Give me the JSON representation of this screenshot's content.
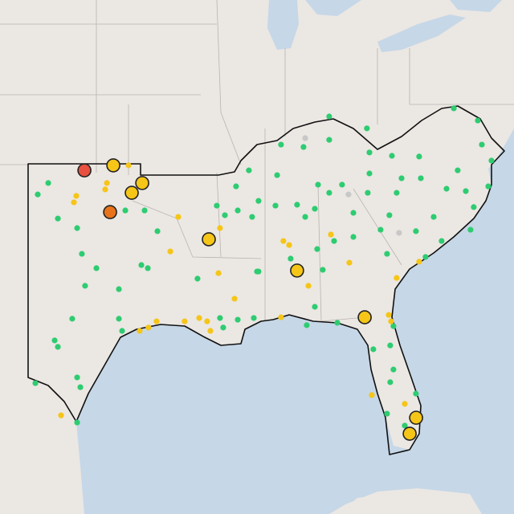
{
  "map": {
    "projection": {
      "lon0": -103,
      "lat0": 37
    },
    "groups": [
      {
        "color": "#2ecc71",
        "stroke": "none",
        "large": false,
        "points": [
          [
            -101.81,
            36.23
          ],
          [
            -102.43,
            35.75
          ],
          [
            -101.24,
            34.74
          ],
          [
            -100.1,
            34.34
          ],
          [
            -99.82,
            33.26
          ],
          [
            -98.96,
            32.66
          ],
          [
            -99.63,
            31.92
          ],
          [
            -101.43,
            29.63
          ],
          [
            -101.24,
            29.36
          ],
          [
            -100.39,
            30.54
          ],
          [
            -97.63,
            30.54
          ],
          [
            -97.44,
            30.03
          ],
          [
            -96.3,
            32.79
          ],
          [
            -95.92,
            32.66
          ],
          [
            -97.63,
            31.78
          ],
          [
            -99.91,
            27.67
          ],
          [
            -100.1,
            28.08
          ],
          [
            -102.57,
            27.84
          ],
          [
            -100.1,
            26.19
          ],
          [
            -97.25,
            35.08
          ],
          [
            -96.11,
            35.08
          ],
          [
            -95.35,
            34.21
          ],
          [
            -91.36,
            34.88
          ],
          [
            -90.7,
            36.09
          ],
          [
            -90.6,
            35.08
          ],
          [
            -91.84,
            35.28
          ],
          [
            -89.94,
            36.76
          ],
          [
            -89.37,
            35.48
          ],
          [
            -92.98,
            32.22
          ],
          [
            -91.65,
            30.57
          ],
          [
            -91.46,
            30.17
          ],
          [
            -90.6,
            30.5
          ],
          [
            -89.65,
            30.57
          ],
          [
            -89.37,
            32.52
          ],
          [
            -88.04,
            37.84
          ],
          [
            -86.71,
            37.74
          ],
          [
            -85.19,
            39.02
          ],
          [
            -85.19,
            38.04
          ],
          [
            -82.96,
            38.52
          ],
          [
            -82.81,
            37.51
          ],
          [
            -81.48,
            37.37
          ],
          [
            -79.87,
            37.34
          ],
          [
            -79.77,
            36.43
          ],
          [
            -77.82,
            39.36
          ],
          [
            -76.4,
            38.85
          ],
          [
            -76.16,
            37.84
          ],
          [
            -75.59,
            37.17
          ],
          [
            -77.59,
            36.76
          ],
          [
            -78.25,
            35.99
          ],
          [
            -77.11,
            35.89
          ],
          [
            -75.78,
            36.09
          ],
          [
            -76.64,
            35.22
          ],
          [
            -76.83,
            34.27
          ],
          [
            -79.01,
            34.81
          ],
          [
            -80.06,
            34.21
          ],
          [
            -81.2,
            35.82
          ],
          [
            -82.91,
            35.82
          ],
          [
            -85.19,
            35.82
          ],
          [
            -84.43,
            36.16
          ],
          [
            -85.85,
            36.16
          ],
          [
            -87.09,
            35.32
          ],
          [
            -88.27,
            36.56
          ],
          [
            -88.37,
            35.28
          ],
          [
            -89.75,
            34.81
          ],
          [
            -86.61,
            34.81
          ],
          [
            -86.04,
            35.15
          ],
          [
            -83.76,
            34.98
          ],
          [
            -81.63,
            34.88
          ],
          [
            -84.9,
            33.8
          ],
          [
            -83.76,
            33.97
          ],
          [
            -85.9,
            33.46
          ],
          [
            -85.57,
            32.59
          ],
          [
            -87.47,
            33.06
          ],
          [
            -89.46,
            32.52
          ],
          [
            -86.04,
            31.04
          ],
          [
            -86.52,
            30.27
          ],
          [
            -84.71,
            30.37
          ],
          [
            -82.15,
            34.27
          ],
          [
            -81.77,
            33.26
          ],
          [
            -80.91,
            36.43
          ],
          [
            -82.81,
            36.63
          ],
          [
            -81.39,
            30.23
          ],
          [
            -82.58,
            29.26
          ],
          [
            -81.58,
            29.42
          ],
          [
            -81.39,
            28.41
          ],
          [
            -81.58,
            27.88
          ],
          [
            -80.06,
            27.4
          ],
          [
            -81.77,
            26.56
          ],
          [
            -80.72,
            26.06
          ],
          [
            -79.49,
            33.13
          ],
          [
            -78.54,
            33.8
          ]
        ]
      },
      {
        "color": "#c8c8c8",
        "stroke": "none",
        "large": false,
        "points": [
          [
            -86.61,
            38.11
          ],
          [
            -84.05,
            35.75
          ],
          [
            -81.06,
            34.14
          ]
        ]
      },
      {
        "color": "#f5c518",
        "stroke": "none",
        "large": false,
        "points": [
          [
            -97.06,
            36.97
          ],
          [
            -98.34,
            36.23
          ],
          [
            -98.44,
            35.96
          ],
          [
            -100.15,
            35.69
          ],
          [
            -100.29,
            35.42
          ],
          [
            -94.12,
            34.81
          ],
          [
            -94.59,
            33.36
          ],
          [
            -91.65,
            34.34
          ],
          [
            -91.74,
            32.45
          ],
          [
            -90.79,
            31.38
          ],
          [
            -95.4,
            30.43
          ],
          [
            -95.88,
            30.17
          ],
          [
            -96.4,
            30.03
          ],
          [
            -93.74,
            30.43
          ],
          [
            -92.88,
            30.57
          ],
          [
            -92.41,
            30.43
          ],
          [
            -92.22,
            30.03
          ],
          [
            -88.04,
            30.6
          ],
          [
            -87.9,
            33.8
          ],
          [
            -87.56,
            33.63
          ],
          [
            -85.09,
            34.07
          ],
          [
            -84.0,
            32.89
          ],
          [
            -81.2,
            32.25
          ],
          [
            -79.87,
            32.93
          ],
          [
            -81.67,
            30.7
          ],
          [
            -81.53,
            30.43
          ],
          [
            -82.67,
            27.34
          ],
          [
            -80.72,
            26.97
          ],
          [
            -101.05,
            26.49
          ],
          [
            -86.42,
            31.92
          ]
        ]
      },
      {
        "color": "#f5c518",
        "stroke": "#222",
        "large": true,
        "points": [
          [
            -97.96,
            36.97
          ],
          [
            -96.25,
            36.23
          ],
          [
            -96.87,
            35.82
          ],
          [
            -92.31,
            33.87
          ],
          [
            -87.09,
            32.56
          ],
          [
            -83.09,
            30.6
          ],
          [
            -80.05,
            26.39
          ],
          [
            -80.43,
            25.72
          ]
        ]
      },
      {
        "color": "#e8731a",
        "stroke": "#222",
        "large": true,
        "points": [
          [
            -98.15,
            35.01
          ]
        ]
      },
      {
        "color": "#e8503f",
        "stroke": "#222",
        "large": true,
        "points": [
          [
            -99.67,
            36.76
          ]
        ]
      }
    ]
  }
}
